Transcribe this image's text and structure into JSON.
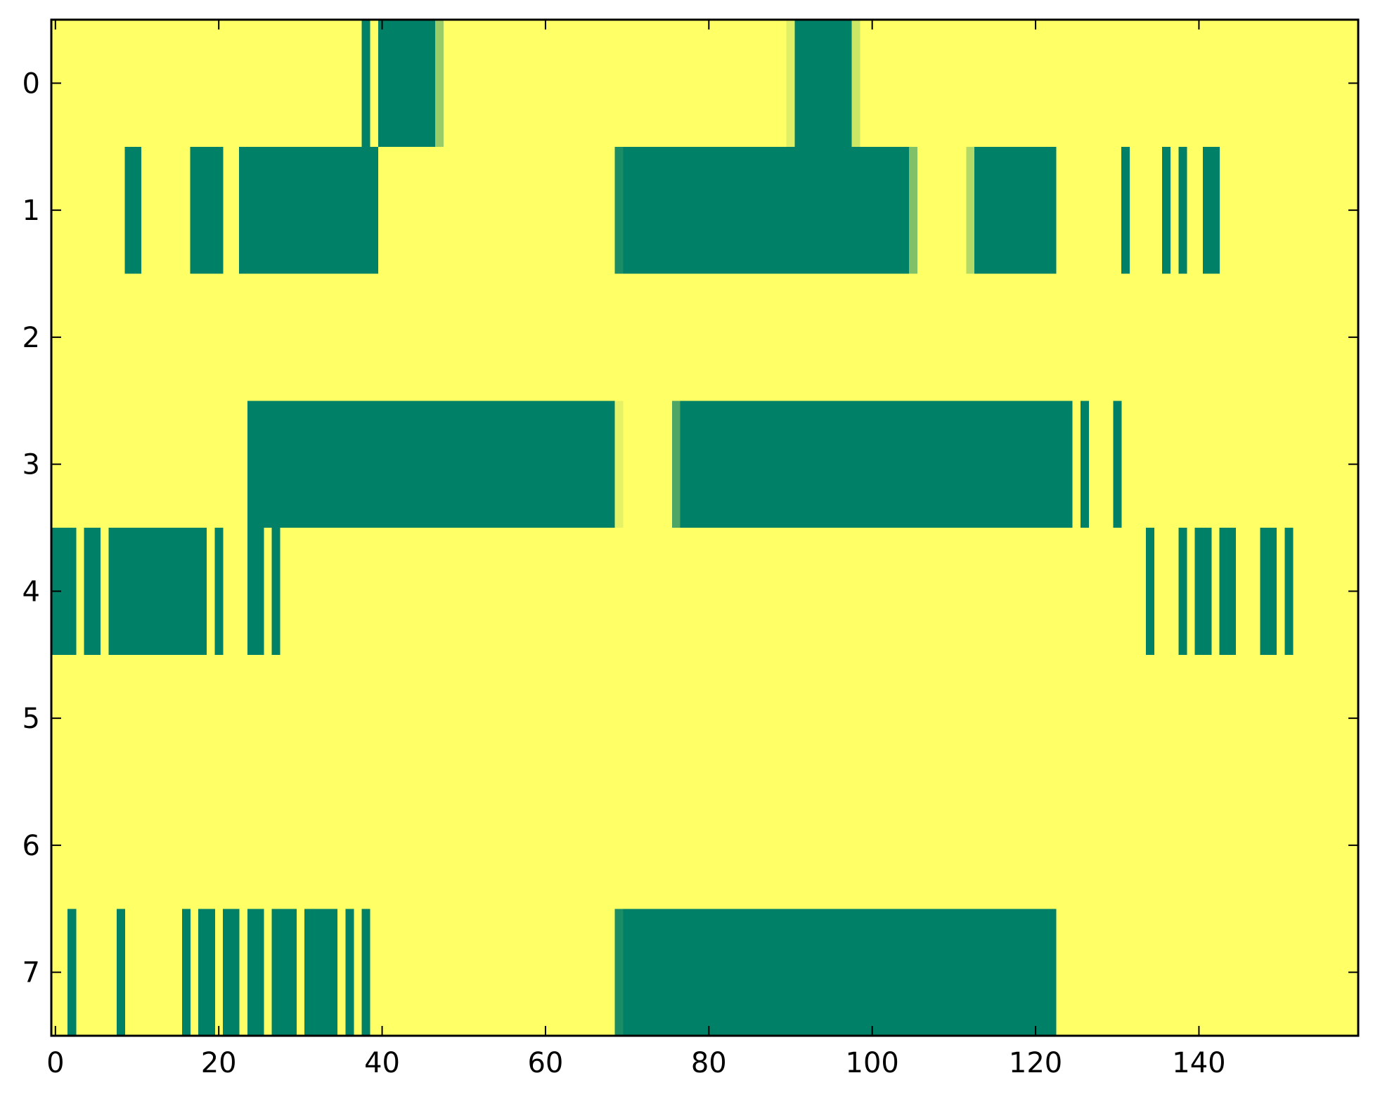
{
  "chart_data": {
    "type": "heatmap",
    "colormap": "summer_r",
    "colors": {
      "low": "#ffff66",
      "high": "#008066",
      "mid_light": "#e6f266",
      "mid": "#99cc66",
      "mid_dark": "#1a8c66"
    },
    "x_range": [
      -0.5,
      159.5
    ],
    "y_range": [
      -0.5,
      7.5
    ],
    "x_ticks": [
      0,
      20,
      40,
      60,
      80,
      100,
      120,
      140
    ],
    "x_tick_labels": [
      "0",
      "20",
      "40",
      "60",
      "80",
      "100",
      "120",
      "140"
    ],
    "y_ticks": [
      0,
      1,
      2,
      3,
      4,
      5,
      6,
      7
    ],
    "y_tick_labels": [
      "0",
      "1",
      "2",
      "3",
      "4",
      "5",
      "6",
      "7"
    ],
    "rows": 8,
    "columns": 160,
    "background_value": 0,
    "segments": [
      {
        "row": 0,
        "start": 37.5,
        "end": 38.5,
        "value": 1
      },
      {
        "row": 0,
        "start": 39.5,
        "end": 46.5,
        "value": 1
      },
      {
        "row": 0,
        "start": 46.5,
        "end": 47.5,
        "value": 0.4
      },
      {
        "row": 0,
        "start": 89.5,
        "end": 90.5,
        "value": 0.12
      },
      {
        "row": 0,
        "start": 90.5,
        "end": 97.5,
        "value": 1
      },
      {
        "row": 0,
        "start": 97.5,
        "end": 98.5,
        "value": 0.2
      },
      {
        "row": 1,
        "start": 8.5,
        "end": 10.5,
        "value": 1
      },
      {
        "row": 1,
        "start": 16.5,
        "end": 20.5,
        "value": 1
      },
      {
        "row": 1,
        "start": 22.5,
        "end": 39.5,
        "value": 1
      },
      {
        "row": 1,
        "start": 68.5,
        "end": 69.5,
        "value": 0.9
      },
      {
        "row": 1,
        "start": 69.5,
        "end": 104.5,
        "value": 1
      },
      {
        "row": 1,
        "start": 104.5,
        "end": 105.5,
        "value": 0.5
      },
      {
        "row": 1,
        "start": 111.5,
        "end": 112.5,
        "value": 0.3
      },
      {
        "row": 1,
        "start": 112.5,
        "end": 122.5,
        "value": 1
      },
      {
        "row": 1,
        "start": 130.5,
        "end": 131.5,
        "value": 1
      },
      {
        "row": 1,
        "start": 135.5,
        "end": 136.5,
        "value": 1
      },
      {
        "row": 1,
        "start": 137.5,
        "end": 138.5,
        "value": 1
      },
      {
        "row": 1,
        "start": 140.5,
        "end": 142.5,
        "value": 1
      },
      {
        "row": 3,
        "start": 23.5,
        "end": 68.5,
        "value": 1
      },
      {
        "row": 3,
        "start": 68.5,
        "end": 69.5,
        "value": 0.1
      },
      {
        "row": 3,
        "start": 75.5,
        "end": 76.5,
        "value": 0.7
      },
      {
        "row": 3,
        "start": 76.5,
        "end": 124.5,
        "value": 1
      },
      {
        "row": 3,
        "start": 125.5,
        "end": 126.5,
        "value": 1
      },
      {
        "row": 3,
        "start": 129.5,
        "end": 130.5,
        "value": 1
      },
      {
        "row": 4,
        "start": -0.5,
        "end": 2.5,
        "value": 1
      },
      {
        "row": 4,
        "start": 3.5,
        "end": 5.5,
        "value": 1
      },
      {
        "row": 4,
        "start": 6.5,
        "end": 18.5,
        "value": 1
      },
      {
        "row": 4,
        "start": 19.5,
        "end": 20.5,
        "value": 1
      },
      {
        "row": 4,
        "start": 23.5,
        "end": 25.5,
        "value": 1
      },
      {
        "row": 4,
        "start": 26.5,
        "end": 27.5,
        "value": 1
      },
      {
        "row": 4,
        "start": 133.5,
        "end": 134.5,
        "value": 1
      },
      {
        "row": 4,
        "start": 137.5,
        "end": 138.5,
        "value": 1
      },
      {
        "row": 4,
        "start": 139.5,
        "end": 141.5,
        "value": 1
      },
      {
        "row": 4,
        "start": 142.5,
        "end": 144.5,
        "value": 1
      },
      {
        "row": 4,
        "start": 147.5,
        "end": 149.5,
        "value": 1
      },
      {
        "row": 4,
        "start": 150.5,
        "end": 151.5,
        "value": 1
      },
      {
        "row": 7,
        "start": 1.5,
        "end": 2.5,
        "value": 1
      },
      {
        "row": 7,
        "start": 7.5,
        "end": 8.5,
        "value": 1
      },
      {
        "row": 7,
        "start": 15.5,
        "end": 16.5,
        "value": 1
      },
      {
        "row": 7,
        "start": 17.5,
        "end": 19.5,
        "value": 1
      },
      {
        "row": 7,
        "start": 20.5,
        "end": 22.5,
        "value": 1
      },
      {
        "row": 7,
        "start": 23.5,
        "end": 25.5,
        "value": 1
      },
      {
        "row": 7,
        "start": 26.5,
        "end": 29.5,
        "value": 1
      },
      {
        "row": 7,
        "start": 30.5,
        "end": 34.5,
        "value": 1
      },
      {
        "row": 7,
        "start": 35.5,
        "end": 36.5,
        "value": 1
      },
      {
        "row": 7,
        "start": 37.5,
        "end": 38.5,
        "value": 1
      },
      {
        "row": 7,
        "start": 68.5,
        "end": 69.5,
        "value": 0.9
      },
      {
        "row": 7,
        "start": 69.5,
        "end": 122.5,
        "value": 1
      }
    ],
    "title": "",
    "xlabel": "",
    "ylabel": "",
    "grid": false,
    "legend": "none"
  }
}
